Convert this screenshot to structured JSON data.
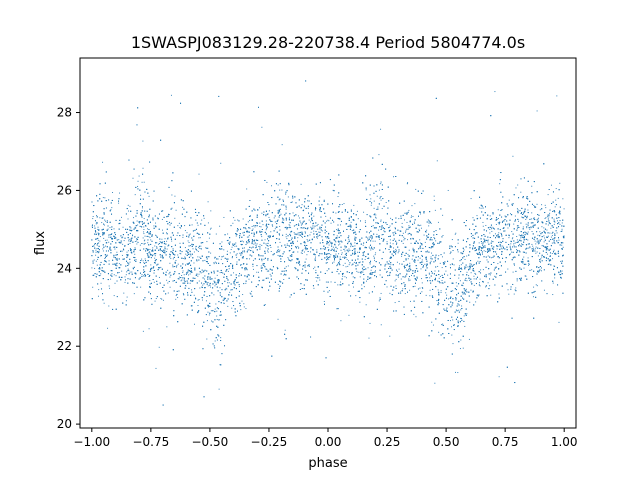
{
  "chart_data": {
    "type": "scatter",
    "title": "1SWASPJ083129.28-220738.4 Period 5804774.0s",
    "xlabel": "phase",
    "ylabel": "flux",
    "xlim": [
      -1.05,
      1.05
    ],
    "ylim": [
      19.9,
      29.4
    ],
    "x_ticks": [
      -1.0,
      -0.75,
      -0.5,
      -0.25,
      0.0,
      0.25,
      0.5,
      0.75,
      1.0
    ],
    "x_tick_labels": [
      "−1.00",
      "−0.75",
      "−0.50",
      "−0.25",
      "0.00",
      "0.25",
      "0.50",
      "0.75",
      "1.00"
    ],
    "y_ticks": [
      20,
      22,
      24,
      26,
      28
    ],
    "y_tick_labels": [
      "20",
      "22",
      "24",
      "26",
      "28"
    ],
    "grid": false,
    "legend": "none",
    "point_color": "#1f77b4",
    "series": [
      {
        "phase_folded_profile": {
          "phase": [
            0.0,
            0.05,
            0.1,
            0.15,
            0.2,
            0.25,
            0.3,
            0.35,
            0.4,
            0.45,
            0.5,
            0.55,
            0.6,
            0.65,
            0.7,
            0.75,
            0.8,
            0.85,
            0.9,
            0.95
          ],
          "mean_flux": [
            24.7,
            24.6,
            24.5,
            24.3,
            25.0,
            24.6,
            24.4,
            24.5,
            24.3,
            24.2,
            23.6,
            23.4,
            24.1,
            24.5,
            24.6,
            24.7,
            24.9,
            24.7,
            24.6,
            24.8
          ],
          "scatter": [
            0.65,
            0.65,
            0.6,
            0.6,
            0.85,
            0.7,
            0.65,
            0.75,
            0.65,
            0.7,
            0.75,
            0.8,
            0.65,
            0.6,
            0.6,
            0.65,
            0.7,
            0.6,
            0.6,
            0.65
          ]
        },
        "phase_range": [
          -1.0,
          1.0
        ],
        "approx_point_count": 9000
      }
    ]
  }
}
